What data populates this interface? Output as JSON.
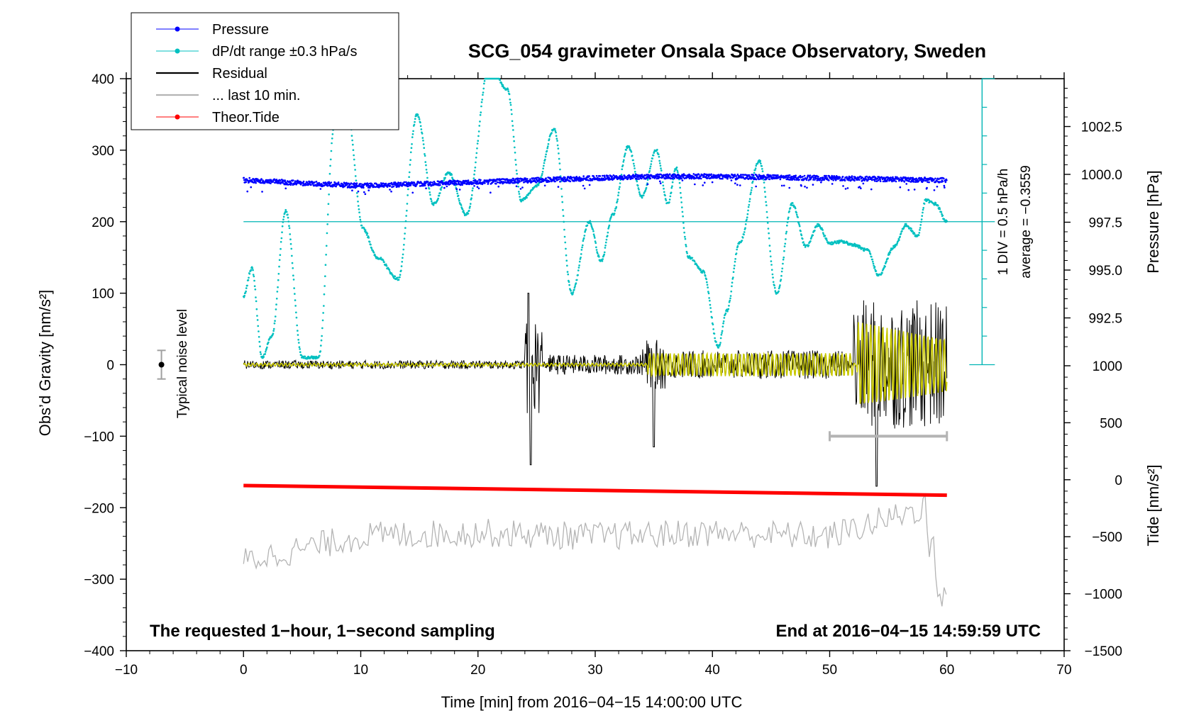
{
  "chart_data": {
    "type": "line",
    "title": "SCG_054 gravimeter Onsala Space Observatory, Sweden",
    "xlabel": "Time [min] from 2016−04−15 14:00:00 UTC",
    "ylabel_left": "Obs’d Gravity [nm/s²]",
    "ylabel_pressure": "Pressure [hPa]",
    "ylabel_tide": "Tide [nm/s²]",
    "xlim": [
      -10,
      70
    ],
    "ylim": [
      -400,
      400
    ],
    "x_ticks": [
      -10,
      0,
      10,
      20,
      30,
      40,
      50,
      60,
      70
    ],
    "x_tick_labels": [
      "−10",
      "0",
      "10",
      "20",
      "30",
      "40",
      "50",
      "60",
      "70"
    ],
    "y_ticks": [
      -400,
      -300,
      -200,
      -100,
      0,
      100,
      200,
      300,
      400
    ],
    "y_tick_labels": [
      "−400",
      "−300",
      "−200",
      "−100",
      "0",
      "100",
      "200",
      "300",
      "400"
    ],
    "pressure_ticks": [
      992.5,
      995.0,
      997.5,
      1000.0,
      1002.5
    ],
    "pressure_tick_labels": [
      "992.5",
      "995.0",
      "997.5",
      "1000.0",
      "1002.5"
    ],
    "pressure_lim": [
      990.0,
      1005.0
    ],
    "tide_ticks": [
      -1500,
      -1000,
      -500,
      0,
      500,
      1000
    ],
    "tide_tick_labels": [
      "−1500",
      "−1000",
      "−500",
      "0",
      "500",
      "1000"
    ],
    "tide_lim": [
      -1500,
      1000
    ],
    "grid": false,
    "legend_position": "top-left",
    "legend": [
      {
        "label": "Pressure",
        "color": "#0000ff",
        "marker": "dot"
      },
      {
        "label": "dP/dt range ±0.3 hPa/s",
        "color": "#00c0c0",
        "marker": "dot"
      },
      {
        "label": "Residual",
        "color": "#000000",
        "marker": "line"
      },
      {
        "label": "... last 10 min.",
        "color": "#b4b4b4",
        "marker": "line"
      },
      {
        "label": "Theor.Tide",
        "color": "#ff0000",
        "marker": "dot"
      }
    ],
    "annotations": {
      "noise_label": "Typical noise level",
      "scale_label": "1 DIV = 0.5 hPa/h",
      "average_label": "average = −0.3559",
      "bottom_left": "The requested 1−hour, 1−second sampling",
      "bottom_right": "End at 2016−04−15 14:59:59 UTC"
    },
    "series": [
      {
        "name": "Pressure",
        "color": "#0000ff",
        "unit": "hPa",
        "x": [
          0,
          10,
          20,
          30,
          35,
          40,
          50,
          60
        ],
        "values": [
          999.7,
          999.4,
          999.6,
          999.8,
          999.9,
          999.9,
          999.8,
          999.7
        ]
      },
      {
        "name": "dP/dt range ±0.3 hPa/s",
        "color": "#00c0c0",
        "unit": "nm/s2 axis",
        "x": [
          0,
          0.7,
          1.6,
          2.4,
          3.6,
          5.0,
          6.4,
          7.8,
          8.8,
          10.2,
          11.4,
          13.2,
          14.8,
          16.2,
          17.5,
          19.0,
          21.0,
          22.5,
          23.7,
          25.0,
          26.5,
          28.0,
          29.5,
          30.5,
          31.5,
          32.8,
          34.0,
          35.2,
          36.2,
          36.9,
          38.0,
          39.2,
          40.5,
          41.2,
          42.3,
          44.0,
          45.5,
          46.8,
          48.0,
          49.0,
          50.0,
          51.0,
          52.0,
          53.2,
          54.2,
          55.5,
          56.5,
          57.5,
          58.2,
          59.0,
          60.0
        ],
        "values": [
          95,
          135,
          10,
          40,
          215,
          10,
          10,
          340,
          360,
          190,
          150,
          120,
          350,
          225,
          268,
          210,
          420,
          385,
          230,
          250,
          330,
          100,
          200,
          145,
          210,
          305,
          235,
          300,
          225,
          275,
          150,
          130,
          25,
          75,
          170,
          285,
          100,
          225,
          165,
          195,
          170,
          172,
          168,
          160,
          125,
          165,
          195,
          180,
          230,
          225,
          200
        ]
      },
      {
        "name": "Residual",
        "color": "#000000",
        "unit": "nm/s2",
        "x": [
          0,
          10,
          20,
          24,
          24.5,
          25,
          30,
          35,
          40,
          45,
          50,
          52,
          54,
          56,
          58,
          60
        ],
        "values": [
          0,
          0,
          0,
          5,
          100,
          -140,
          10,
          -115,
          20,
          25,
          25,
          40,
          -170,
          130,
          135,
          -15
        ]
      },
      {
        "name": "... last 10 min.",
        "color": "#b4b4b4",
        "unit": "nm/s2 (offset)",
        "x": [
          0,
          10,
          20,
          30,
          40,
          50,
          58,
          59.5,
          60
        ],
        "values": [
          -275,
          -240,
          -235,
          -240,
          -235,
          -240,
          -200,
          -320,
          -320
        ]
      },
      {
        "name": "Theor.Tide",
        "color": "#ff0000",
        "unit": "nm/s2 tide",
        "x": [
          0,
          60
        ],
        "values": [
          -51,
          -136
        ]
      }
    ]
  }
}
